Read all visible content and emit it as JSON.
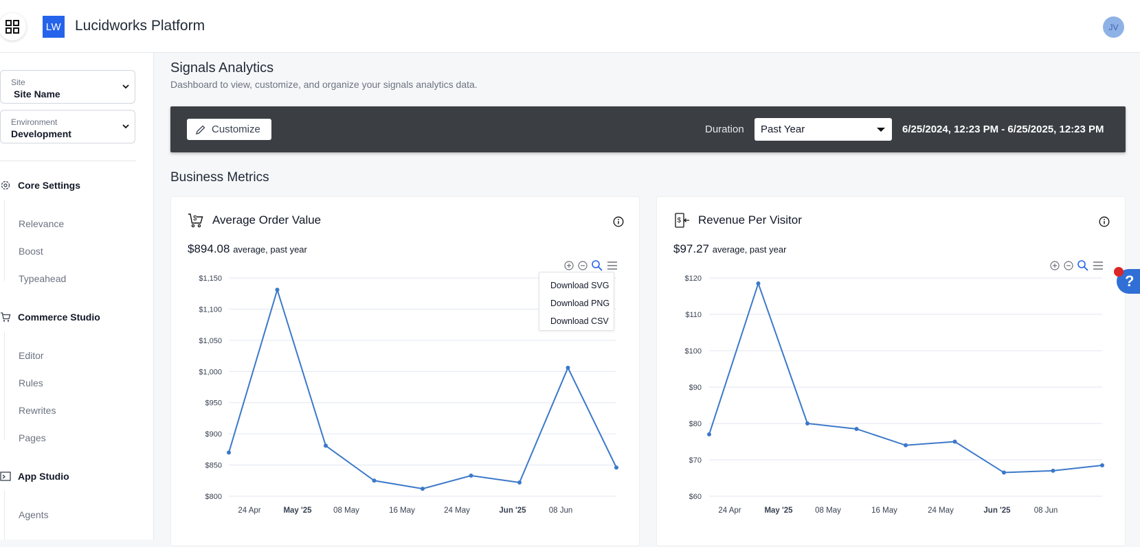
{
  "header": {
    "logo": "LW",
    "title": "Lucidworks Platform",
    "avatar": "JV"
  },
  "sidebar": {
    "site": {
      "label": "Site",
      "value": "Site Name"
    },
    "environment": {
      "label": "Environment",
      "value": "Development"
    },
    "sections": [
      {
        "title": "Core Settings",
        "items": [
          "Relevance",
          "Boost",
          "Typeahead"
        ]
      },
      {
        "title": "Commerce Studio",
        "items": [
          "Editor",
          "Rules",
          "Rewrites",
          "Pages"
        ]
      },
      {
        "title": "App Studio",
        "items": [
          "Agents"
        ]
      }
    ]
  },
  "page": {
    "title": "Signals Analytics",
    "subtitle": "Dashboard to view, customize, and organize your signals analytics data."
  },
  "toolbar": {
    "customize_label": "Customize",
    "duration_label": "Duration",
    "duration_value": "Past Year",
    "date_range": "6/25/2024, 12:23 PM - 6/25/2025, 12:23 PM"
  },
  "business_metrics": {
    "title": "Business Metrics"
  },
  "download_menu": [
    "Download SVG",
    "Download PNG",
    "Download CSV"
  ],
  "cards": [
    {
      "title": "Average Order Value",
      "metric": "$894.08",
      "metric_note": "average, past year"
    },
    {
      "title": "Revenue Per Visitor",
      "metric": "$97.27",
      "metric_note": "average, past year"
    }
  ],
  "colors": {
    "accent": "#2563eb",
    "line": "#3b78c9",
    "toolbar": "#3b3f44"
  },
  "chart_data": [
    {
      "type": "line",
      "title": "Average Order Value",
      "x_tick_labels": [
        "24 Apr",
        "May '25",
        "08 May",
        "16 May",
        "24 May",
        "Jun '25",
        "08 Jun"
      ],
      "bold_ticks": [
        "May '25",
        "Jun '25"
      ],
      "y_tick_labels": [
        "$1,150",
        "$1,100",
        "$1,050",
        "$1,000",
        "$950",
        "$900",
        "$850",
        "$800"
      ],
      "ylim": [
        800,
        1150
      ],
      "series": [
        {
          "name": "Average Order Value",
          "values": [
            870,
            1131,
            881,
            825,
            812,
            833,
            822,
            1006,
            846
          ]
        }
      ]
    },
    {
      "type": "line",
      "title": "Revenue Per Visitor",
      "x_tick_labels": [
        "24 Apr",
        "May '25",
        "08 May",
        "16 May",
        "24 May",
        "Jun '25",
        "08 Jun"
      ],
      "bold_ticks": [
        "May '25",
        "Jun '25"
      ],
      "y_tick_labels": [
        "$120",
        "$110",
        "$100",
        "$90",
        "$80",
        "$70",
        "$60"
      ],
      "ylim": [
        60,
        120
      ],
      "series": [
        {
          "name": "Revenue Per Visitor",
          "values": [
            77,
            118.5,
            80,
            78.5,
            74,
            75,
            66.5,
            67,
            68.5
          ]
        }
      ]
    }
  ]
}
